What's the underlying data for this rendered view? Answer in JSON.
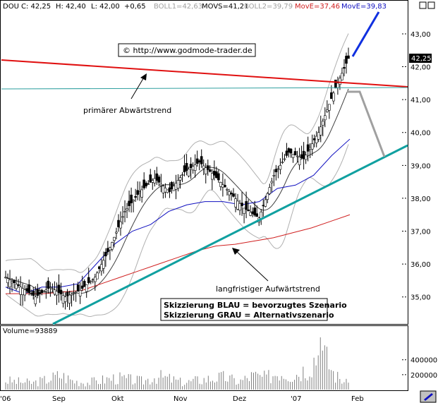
{
  "chart_data": {
    "type": "candlestick",
    "header": {
      "symbol": "DOU",
      "close_label": "C: 42,25",
      "high_label": "H: 42,40",
      "low_label": "L: 42,00",
      "change_label": "+0,65",
      "boll1_label": "BOLL1=42,63",
      "movs_label": "MOVS=41,21",
      "boll2_label": "BOLL2=39,79",
      "move1_label": "MovE=37,46",
      "move2_label": "MovE=39,83"
    },
    "watermark": "© http://www.godmode-trader.de",
    "price_badge": "42,25",
    "ylim": [
      34.2,
      43.6
    ],
    "y_ticks": [
      35,
      36,
      37,
      38,
      39,
      40,
      41,
      42,
      43
    ],
    "y_tick_labels": [
      "35,00",
      "36,00",
      "37,00",
      "38,00",
      "39,00",
      "40,00",
      "41,00",
      "42,00",
      "43,00"
    ],
    "x_tick_labels": [
      "'06",
      "Sep",
      "Okt",
      "Nov",
      "Dez",
      "'07",
      "Feb"
    ],
    "series": [
      {
        "name": "MovE=39,83",
        "color": "#1010c0",
        "values": [
          35.3,
          35.1,
          35.3,
          35.3,
          35.4,
          36.0,
          36.6,
          37.0,
          37.2,
          37.6,
          37.8,
          37.9,
          37.9,
          37.8,
          37.9,
          38.3,
          38.4,
          38.7,
          39.3,
          39.8
        ]
      },
      {
        "name": "MovE=37,46",
        "color": "#d02020",
        "values": [
          35.1,
          35.1,
          35.1,
          35.15,
          35.2,
          35.4,
          35.6,
          35.8,
          36.0,
          36.2,
          36.4,
          36.55,
          36.6,
          36.7,
          36.8,
          36.95,
          37.1,
          37.3,
          37.5
        ]
      }
    ],
    "candles_close": [
      35.6,
      35.3,
      35.0,
      35.3,
      35.0,
      35.2,
      35.6,
      36.5,
      37.6,
      38.2,
      38.6,
      38.2,
      38.8,
      39.1,
      38.7,
      38.2,
      37.7,
      37.4,
      38.7,
      39.4,
      39.2,
      40.0,
      41.2,
      42.25
    ],
    "volume": {
      "label": "Volume=93889",
      "ylim": [
        0,
        700000
      ],
      "ticks": [
        200000,
        400000
      ],
      "tick_labels": [
        "200000",
        "400000"
      ],
      "values": [
        160000,
        140000,
        120000,
        180000,
        260000,
        150000,
        130000,
        170000,
        210000,
        180000,
        150000,
        240000,
        190000,
        120000,
        170000,
        200000,
        220000,
        140000,
        250000,
        210000,
        330000,
        260000,
        400000,
        720000,
        260000,
        93889
      ]
    },
    "annotations": {
      "downtrend": "primärer Abwärtstrend",
      "uptrend": "langfristiger Aufwärtstrend",
      "scenario_blue": "Skizzierung BLAU = bevorzugtes Szenario",
      "scenario_grey": "Skizzierung GRAU = Alternativszenario"
    },
    "colors": {
      "downtrend_line": "#e01010",
      "uptrend_line": "#10a0a0",
      "resistance_line": "#30a0a0",
      "blue_scenario": "#1030e0",
      "grey_scenario": "#a0a0a0",
      "candle": "#000000",
      "bollinger": "#b0b0b0",
      "movs": "#404040",
      "volume_bar": "#808080"
    }
  }
}
